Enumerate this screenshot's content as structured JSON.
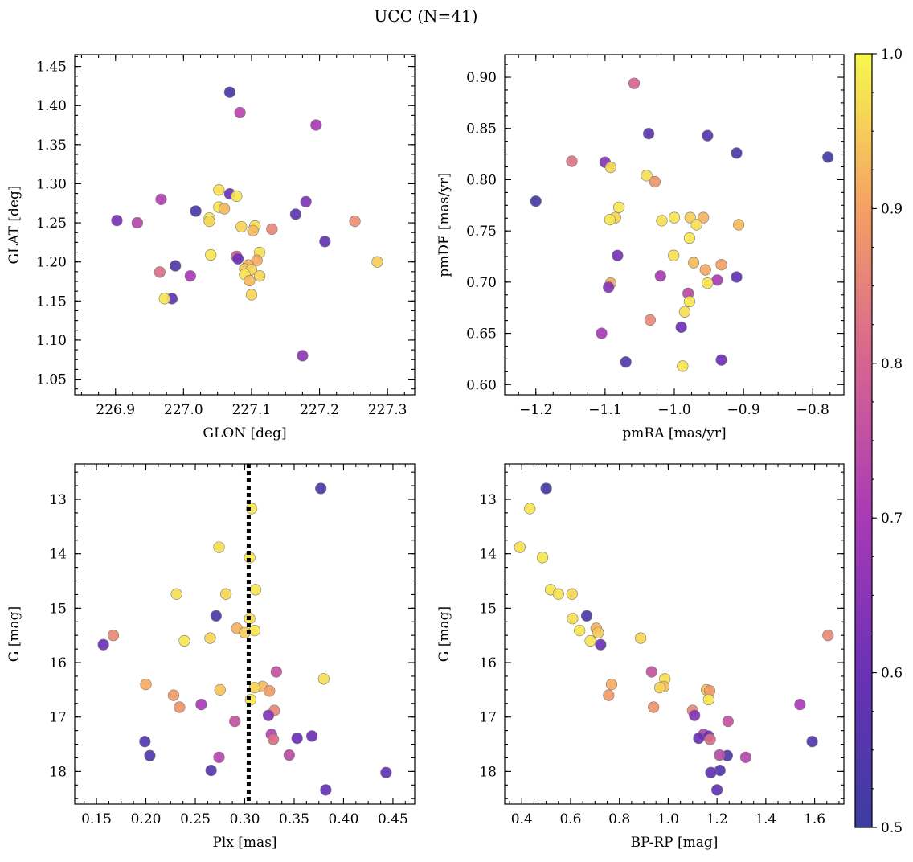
{
  "suptitle": "UCC (N=41)",
  "colorbar": {
    "range": [
      0.5,
      1.0
    ],
    "ticks": [
      0.5,
      0.6,
      0.7,
      0.8,
      0.9,
      1.0
    ],
    "tick_labels": [
      "0.5",
      "0.6",
      "0.7",
      "0.8",
      "0.9",
      "1.0"
    ],
    "colormap": "plasma"
  },
  "chart_data": [
    {
      "type": "scatter",
      "id": "glon-glat",
      "title": "",
      "xlabel": "GLON [deg]",
      "ylabel": "GLAT [deg]",
      "xlim": [
        226.84,
        227.34
      ],
      "ylim": [
        1.03,
        1.465
      ],
      "xticks": [
        226.9,
        227.0,
        227.1,
        227.2,
        227.3
      ],
      "xtick_labels": [
        "226.9",
        "227.0",
        "227.1",
        "227.2",
        "227.3"
      ],
      "yticks": [
        1.05,
        1.1,
        1.15,
        1.2,
        1.25,
        1.3,
        1.35,
        1.4,
        1.45
      ],
      "ytick_labels": [
        "1.05",
        "1.10",
        "1.15",
        "1.20",
        "1.25",
        "1.30",
        "1.35",
        "1.40",
        "1.45"
      ],
      "y_inverted": false,
      "points": [
        {
          "x": 227.068,
          "y": 1.417,
          "c": 0.52
        },
        {
          "x": 227.083,
          "y": 1.391,
          "c": 0.73
        },
        {
          "x": 227.195,
          "y": 1.375,
          "c": 0.7
        },
        {
          "x": 227.052,
          "y": 1.292,
          "c": 0.97
        },
        {
          "x": 227.068,
          "y": 1.287,
          "c": 0.6
        },
        {
          "x": 227.078,
          "y": 1.284,
          "c": 0.98
        },
        {
          "x": 226.967,
          "y": 1.28,
          "c": 0.72
        },
        {
          "x": 227.18,
          "y": 1.277,
          "c": 0.63
        },
        {
          "x": 227.052,
          "y": 1.27,
          "c": 0.98
        },
        {
          "x": 227.06,
          "y": 1.268,
          "c": 0.93
        },
        {
          "x": 227.018,
          "y": 1.265,
          "c": 0.53
        },
        {
          "x": 227.165,
          "y": 1.261,
          "c": 0.57
        },
        {
          "x": 227.038,
          "y": 1.256,
          "c": 0.98
        },
        {
          "x": 226.902,
          "y": 1.253,
          "c": 0.62
        },
        {
          "x": 227.038,
          "y": 1.252,
          "c": 0.96
        },
        {
          "x": 226.932,
          "y": 1.25,
          "c": 0.73
        },
        {
          "x": 227.252,
          "y": 1.252,
          "c": 0.87
        },
        {
          "x": 227.085,
          "y": 1.245,
          "c": 0.96
        },
        {
          "x": 227.105,
          "y": 1.246,
          "c": 0.97
        },
        {
          "x": 227.13,
          "y": 1.242,
          "c": 0.86
        },
        {
          "x": 227.102,
          "y": 1.24,
          "c": 0.93
        },
        {
          "x": 227.208,
          "y": 1.226,
          "c": 0.58
        },
        {
          "x": 227.112,
          "y": 1.212,
          "c": 0.97
        },
        {
          "x": 227.04,
          "y": 1.209,
          "c": 0.98
        },
        {
          "x": 227.078,
          "y": 1.207,
          "c": 0.78
        },
        {
          "x": 227.08,
          "y": 1.204,
          "c": 0.6
        },
        {
          "x": 227.108,
          "y": 1.202,
          "c": 0.91
        },
        {
          "x": 227.285,
          "y": 1.2,
          "c": 0.95
        },
        {
          "x": 227.095,
          "y": 1.196,
          "c": 0.92
        },
        {
          "x": 226.988,
          "y": 1.195,
          "c": 0.54
        },
        {
          "x": 227.09,
          "y": 1.191,
          "c": 0.94
        },
        {
          "x": 227.1,
          "y": 1.19,
          "c": 0.96
        },
        {
          "x": 226.965,
          "y": 1.187,
          "c": 0.82
        },
        {
          "x": 227.09,
          "y": 1.184,
          "c": 0.98
        },
        {
          "x": 227.01,
          "y": 1.182,
          "c": 0.7
        },
        {
          "x": 227.112,
          "y": 1.182,
          "c": 0.96
        },
        {
          "x": 227.097,
          "y": 1.176,
          "c": 0.93
        },
        {
          "x": 226.983,
          "y": 1.153,
          "c": 0.58
        },
        {
          "x": 226.972,
          "y": 1.153,
          "c": 0.98
        },
        {
          "x": 227.1,
          "y": 1.158,
          "c": 0.96
        },
        {
          "x": 227.175,
          "y": 1.08,
          "c": 0.66
        }
      ]
    },
    {
      "type": "scatter",
      "id": "pmra-pmde",
      "title": "",
      "xlabel": "pmRA [mas/yr]",
      "ylabel": "pmDE [mas/yr]",
      "xlim": [
        -1.245,
        -0.755
      ],
      "ylim": [
        0.59,
        0.922
      ],
      "xticks": [
        -1.2,
        -1.1,
        -1.0,
        -0.9,
        -0.8
      ],
      "xtick_labels": [
        "−1.2",
        "−1.1",
        "−1.0",
        "−0.9",
        "−0.8"
      ],
      "yticks": [
        0.6,
        0.65,
        0.7,
        0.75,
        0.8,
        0.85,
        0.9
      ],
      "ytick_labels": [
        "0.60",
        "0.65",
        "0.70",
        "0.75",
        "0.80",
        "0.85",
        "0.90"
      ],
      "y_inverted": false,
      "points": [
        {
          "x": -1.058,
          "y": 0.894,
          "c": 0.8
        },
        {
          "x": -1.037,
          "y": 0.845,
          "c": 0.56
        },
        {
          "x": -0.952,
          "y": 0.843,
          "c": 0.55
        },
        {
          "x": -0.91,
          "y": 0.826,
          "c": 0.53
        },
        {
          "x": -0.778,
          "y": 0.822,
          "c": 0.52
        },
        {
          "x": -1.148,
          "y": 0.818,
          "c": 0.83
        },
        {
          "x": -1.1,
          "y": 0.817,
          "c": 0.64
        },
        {
          "x": -1.092,
          "y": 0.812,
          "c": 0.96
        },
        {
          "x": -1.04,
          "y": 0.804,
          "c": 0.97
        },
        {
          "x": -1.028,
          "y": 0.798,
          "c": 0.88
        },
        {
          "x": -1.2,
          "y": 0.779,
          "c": 0.52
        },
        {
          "x": -1.08,
          "y": 0.773,
          "c": 0.98
        },
        {
          "x": -1.085,
          "y": 0.763,
          "c": 0.96
        },
        {
          "x": -1.093,
          "y": 0.761,
          "c": 0.98
        },
        {
          "x": -1.0,
          "y": 0.763,
          "c": 0.98
        },
        {
          "x": -0.977,
          "y": 0.763,
          "c": 0.95
        },
        {
          "x": -0.958,
          "y": 0.763,
          "c": 0.92
        },
        {
          "x": -1.018,
          "y": 0.76,
          "c": 0.97
        },
        {
          "x": -0.968,
          "y": 0.756,
          "c": 0.97
        },
        {
          "x": -0.907,
          "y": 0.756,
          "c": 0.93
        },
        {
          "x": -0.978,
          "y": 0.743,
          "c": 0.98
        },
        {
          "x": -1.082,
          "y": 0.726,
          "c": 0.62
        },
        {
          "x": -1.001,
          "y": 0.726,
          "c": 0.97
        },
        {
          "x": -0.972,
          "y": 0.719,
          "c": 0.93
        },
        {
          "x": -0.932,
          "y": 0.717,
          "c": 0.9
        },
        {
          "x": -0.955,
          "y": 0.712,
          "c": 0.91
        },
        {
          "x": -1.02,
          "y": 0.706,
          "c": 0.7
        },
        {
          "x": -0.91,
          "y": 0.705,
          "c": 0.58
        },
        {
          "x": -0.938,
          "y": 0.702,
          "c": 0.7
        },
        {
          "x": -0.952,
          "y": 0.699,
          "c": 0.98
        },
        {
          "x": -1.092,
          "y": 0.699,
          "c": 0.91
        },
        {
          "x": -1.095,
          "y": 0.695,
          "c": 0.64
        },
        {
          "x": -0.98,
          "y": 0.689,
          "c": 0.74
        },
        {
          "x": -0.978,
          "y": 0.681,
          "c": 0.98
        },
        {
          "x": -0.985,
          "y": 0.671,
          "c": 0.97
        },
        {
          "x": -1.035,
          "y": 0.663,
          "c": 0.86
        },
        {
          "x": -0.99,
          "y": 0.656,
          "c": 0.6
        },
        {
          "x": -1.105,
          "y": 0.65,
          "c": 0.7
        },
        {
          "x": -0.932,
          "y": 0.624,
          "c": 0.6
        },
        {
          "x": -1.07,
          "y": 0.622,
          "c": 0.55
        },
        {
          "x": -0.988,
          "y": 0.618,
          "c": 0.98
        }
      ]
    },
    {
      "type": "scatter",
      "id": "plx-g",
      "title": "",
      "xlabel": "Plx [mas]",
      "ylabel": "G [mag]",
      "xlim": [
        0.128,
        0.472
      ],
      "ylim": [
        18.6,
        12.35
      ],
      "xticks": [
        0.15,
        0.2,
        0.25,
        0.3,
        0.35,
        0.4,
        0.45
      ],
      "xtick_labels": [
        "0.15",
        "0.20",
        "0.25",
        "0.30",
        "0.35",
        "0.40",
        "0.45"
      ],
      "yticks": [
        13,
        14,
        15,
        16,
        17,
        18
      ],
      "ytick_labels": [
        "13",
        "14",
        "15",
        "16",
        "17",
        "18"
      ],
      "y_inverted": true,
      "vline_x": 0.304,
      "points": [
        {
          "x": 0.377,
          "y": 12.8,
          "c": 0.52
        },
        {
          "x": 0.307,
          "y": 13.17,
          "c": 0.98
        },
        {
          "x": 0.274,
          "y": 13.88,
          "c": 0.97
        },
        {
          "x": 0.305,
          "y": 14.07,
          "c": 0.98
        },
        {
          "x": 0.231,
          "y": 14.74,
          "c": 0.97
        },
        {
          "x": 0.281,
          "y": 14.74,
          "c": 0.96
        },
        {
          "x": 0.311,
          "y": 14.66,
          "c": 0.98
        },
        {
          "x": 0.271,
          "y": 15.14,
          "c": 0.53
        },
        {
          "x": 0.305,
          "y": 15.19,
          "c": 0.97
        },
        {
          "x": 0.292,
          "y": 15.37,
          "c": 0.92
        },
        {
          "x": 0.31,
          "y": 15.41,
          "c": 0.98
        },
        {
          "x": 0.3,
          "y": 15.45,
          "c": 0.95
        },
        {
          "x": 0.265,
          "y": 15.55,
          "c": 0.96
        },
        {
          "x": 0.239,
          "y": 15.6,
          "c": 0.98
        },
        {
          "x": 0.167,
          "y": 15.5,
          "c": 0.86
        },
        {
          "x": 0.157,
          "y": 15.67,
          "c": 0.6
        },
        {
          "x": 0.332,
          "y": 16.17,
          "c": 0.76
        },
        {
          "x": 0.38,
          "y": 16.3,
          "c": 0.97
        },
        {
          "x": 0.2,
          "y": 16.4,
          "c": 0.91
        },
        {
          "x": 0.318,
          "y": 16.44,
          "c": 0.93
        },
        {
          "x": 0.31,
          "y": 16.46,
          "c": 0.96
        },
        {
          "x": 0.275,
          "y": 16.5,
          "c": 0.94
        },
        {
          "x": 0.325,
          "y": 16.52,
          "c": 0.89
        },
        {
          "x": 0.228,
          "y": 16.6,
          "c": 0.89
        },
        {
          "x": 0.306,
          "y": 16.68,
          "c": 0.98
        },
        {
          "x": 0.256,
          "y": 16.77,
          "c": 0.7
        },
        {
          "x": 0.234,
          "y": 16.82,
          "c": 0.88
        },
        {
          "x": 0.33,
          "y": 16.88,
          "c": 0.86
        },
        {
          "x": 0.324,
          "y": 16.97,
          "c": 0.64
        },
        {
          "x": 0.29,
          "y": 17.08,
          "c": 0.76
        },
        {
          "x": 0.327,
          "y": 17.32,
          "c": 0.72
        },
        {
          "x": 0.368,
          "y": 17.35,
          "c": 0.6
        },
        {
          "x": 0.353,
          "y": 17.39,
          "c": 0.6
        },
        {
          "x": 0.329,
          "y": 17.41,
          "c": 0.82
        },
        {
          "x": 0.199,
          "y": 17.45,
          "c": 0.55
        },
        {
          "x": 0.204,
          "y": 17.71,
          "c": 0.54
        },
        {
          "x": 0.274,
          "y": 17.74,
          "c": 0.73
        },
        {
          "x": 0.345,
          "y": 17.7,
          "c": 0.74
        },
        {
          "x": 0.266,
          "y": 17.98,
          "c": 0.56
        },
        {
          "x": 0.443,
          "y": 18.02,
          "c": 0.58
        },
        {
          "x": 0.382,
          "y": 18.34,
          "c": 0.58
        }
      ]
    },
    {
      "type": "scatter",
      "id": "bprp-g",
      "title": "",
      "xlabel": "BP-RP [mag]",
      "ylabel": "G [mag]",
      "xlim": [
        0.33,
        1.72
      ],
      "ylim": [
        18.6,
        12.35
      ],
      "xticks": [
        0.4,
        0.6,
        0.8,
        1.0,
        1.2,
        1.4,
        1.6
      ],
      "xtick_labels": [
        "0.4",
        "0.6",
        "0.8",
        "1.0",
        "1.2",
        "1.4",
        "1.6"
      ],
      "yticks": [
        13,
        14,
        15,
        16,
        17,
        18
      ],
      "ytick_labels": [
        "13",
        "14",
        "15",
        "16",
        "17",
        "18"
      ],
      "y_inverted": true,
      "points": [
        {
          "x": 0.5,
          "y": 12.8,
          "c": 0.52
        },
        {
          "x": 0.433,
          "y": 13.17,
          "c": 0.98
        },
        {
          "x": 0.392,
          "y": 13.88,
          "c": 0.97
        },
        {
          "x": 0.485,
          "y": 14.07,
          "c": 0.98
        },
        {
          "x": 0.518,
          "y": 14.66,
          "c": 0.98
        },
        {
          "x": 0.55,
          "y": 14.74,
          "c": 0.97
        },
        {
          "x": 0.606,
          "y": 14.74,
          "c": 0.96
        },
        {
          "x": 0.666,
          "y": 15.14,
          "c": 0.53
        },
        {
          "x": 0.608,
          "y": 15.19,
          "c": 0.97
        },
        {
          "x": 0.705,
          "y": 15.37,
          "c": 0.92
        },
        {
          "x": 0.637,
          "y": 15.41,
          "c": 0.98
        },
        {
          "x": 0.713,
          "y": 15.45,
          "c": 0.95
        },
        {
          "x": 0.887,
          "y": 15.55,
          "c": 0.96
        },
        {
          "x": 0.681,
          "y": 15.6,
          "c": 0.98
        },
        {
          "x": 1.655,
          "y": 15.5,
          "c": 0.86
        },
        {
          "x": 0.723,
          "y": 15.67,
          "c": 0.6
        },
        {
          "x": 0.932,
          "y": 16.17,
          "c": 0.76
        },
        {
          "x": 0.986,
          "y": 16.3,
          "c": 0.97
        },
        {
          "x": 0.768,
          "y": 16.4,
          "c": 0.91
        },
        {
          "x": 0.982,
          "y": 16.44,
          "c": 0.93
        },
        {
          "x": 0.966,
          "y": 16.46,
          "c": 0.96
        },
        {
          "x": 1.157,
          "y": 16.5,
          "c": 0.94
        },
        {
          "x": 1.17,
          "y": 16.52,
          "c": 0.89
        },
        {
          "x": 0.756,
          "y": 16.6,
          "c": 0.89
        },
        {
          "x": 1.166,
          "y": 16.68,
          "c": 0.98
        },
        {
          "x": 1.54,
          "y": 16.77,
          "c": 0.7
        },
        {
          "x": 0.94,
          "y": 16.82,
          "c": 0.88
        },
        {
          "x": 1.1,
          "y": 16.88,
          "c": 0.86
        },
        {
          "x": 1.108,
          "y": 16.97,
          "c": 0.64
        },
        {
          "x": 1.245,
          "y": 17.08,
          "c": 0.76
        },
        {
          "x": 1.145,
          "y": 17.32,
          "c": 0.72
        },
        {
          "x": 1.165,
          "y": 17.35,
          "c": 0.6
        },
        {
          "x": 1.125,
          "y": 17.39,
          "c": 0.6
        },
        {
          "x": 1.172,
          "y": 17.41,
          "c": 0.82
        },
        {
          "x": 1.59,
          "y": 17.45,
          "c": 0.55
        },
        {
          "x": 1.242,
          "y": 17.71,
          "c": 0.54
        },
        {
          "x": 1.318,
          "y": 17.74,
          "c": 0.73
        },
        {
          "x": 1.21,
          "y": 17.7,
          "c": 0.74
        },
        {
          "x": 1.212,
          "y": 17.98,
          "c": 0.56
        },
        {
          "x": 1.175,
          "y": 18.02,
          "c": 0.58
        },
        {
          "x": 1.2,
          "y": 18.34,
          "c": 0.58
        }
      ]
    }
  ]
}
